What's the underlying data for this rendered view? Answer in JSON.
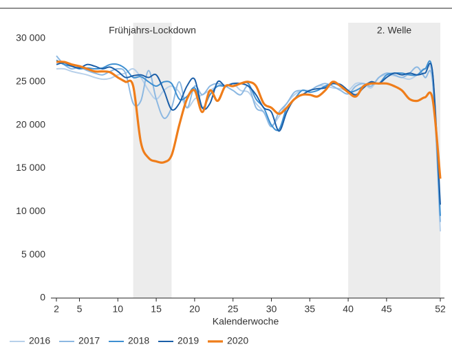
{
  "chart_data": {
    "type": "line",
    "x_label": "Kalenderwoche",
    "x": [
      2,
      3,
      4,
      5,
      6,
      7,
      8,
      9,
      10,
      11,
      12,
      13,
      14,
      15,
      16,
      17,
      18,
      19,
      20,
      21,
      22,
      23,
      24,
      25,
      26,
      27,
      28,
      29,
      30,
      31,
      32,
      33,
      34,
      35,
      36,
      37,
      38,
      39,
      40,
      41,
      42,
      43,
      44,
      45,
      46,
      47,
      48,
      49,
      50,
      51,
      52
    ],
    "xlim": [
      2,
      52
    ],
    "xticks": [
      2,
      5,
      10,
      15,
      20,
      25,
      30,
      35,
      40,
      45,
      52
    ],
    "ylim": [
      0,
      30000
    ],
    "yticks": [
      0,
      {
        "value": 5000,
        "label": "5 000"
      },
      {
        "value": 10000,
        "label": "10 000"
      },
      {
        "value": 15000,
        "label": "15 000"
      },
      {
        "value": 20000,
        "label": "20 000"
      },
      {
        "value": 25000,
        "label": "25 000"
      },
      {
        "value": 30000,
        "label": "30 000"
      }
    ],
    "grid": false,
    "legend": "bottom-left",
    "spans": [
      {
        "label": "Frühjahrs-Lockdown",
        "start": 12,
        "end": 17,
        "color": "#ececec"
      },
      {
        "label": "2. Welle",
        "start": 40,
        "end": 52,
        "color": "#ececec"
      }
    ],
    "series": [
      {
        "name": "2016",
        "color": "#b7d0ea",
        "values": [
          26500,
          26500,
          26200,
          26000,
          25800,
          25500,
          25300,
          25400,
          25800,
          26000,
          26500,
          25500,
          24000,
          23000,
          24000,
          24500,
          23800,
          22000,
          23000,
          23500,
          24000,
          24500,
          24500,
          24800,
          24000,
          23800,
          22500,
          21500,
          20000,
          21000,
          22500,
          23500,
          24000,
          24000,
          24500,
          24500,
          24300,
          24200,
          24000,
          24800,
          24800,
          24300,
          25500,
          25800,
          25700,
          25500,
          25300,
          25800,
          26500,
          25000,
          7700
        ]
      },
      {
        "name": "2017",
        "color": "#8cb8e2",
        "values": [
          28000,
          27000,
          26500,
          26700,
          26300,
          26000,
          25800,
          26200,
          26500,
          26000,
          22500,
          22800,
          26300,
          23000,
          20800,
          22000,
          25000,
          22000,
          24500,
          23500,
          24500,
          24800,
          24500,
          24000,
          23500,
          24500,
          22000,
          21500,
          19800,
          21500,
          22500,
          23800,
          24000,
          24000,
          24500,
          24800,
          24500,
          24000,
          23600,
          24500,
          24800,
          24500,
          25500,
          26000,
          25800,
          25500,
          26000,
          26700,
          25500,
          25000,
          8800
        ]
      },
      {
        "name": "2018",
        "color": "#3d8fd1",
        "values": [
          27500,
          27000,
          26800,
          26500,
          26600,
          26500,
          26600,
          27000,
          27000,
          26500,
          25500,
          25600,
          25000,
          24500,
          25000,
          24800,
          23000,
          23300,
          24300,
          22000,
          23500,
          24500,
          24500,
          24800,
          24800,
          24800,
          23000,
          22000,
          20000,
          19500,
          22000,
          23000,
          24000,
          23800,
          24000,
          24500,
          24800,
          24500,
          23800,
          24000,
          24500,
          25000,
          24800,
          25800,
          26000,
          26000,
          25800,
          25800,
          26500,
          26000,
          9500
        ]
      },
      {
        "name": "2019",
        "color": "#1a5ea8",
        "values": [
          27000,
          27200,
          26800,
          26600,
          27000,
          26800,
          26500,
          26700,
          26200,
          25500,
          25700,
          25800,
          25500,
          25800,
          24000,
          21800,
          22500,
          24500,
          25300,
          22000,
          22500,
          25000,
          24500,
          24800,
          24800,
          24500,
          23500,
          22000,
          21500,
          19300,
          21500,
          23000,
          23500,
          24000,
          24200,
          24300,
          24800,
          24700,
          24000,
          23500,
          24300,
          25000,
          24800,
          25500,
          26000,
          25800,
          26000,
          25800,
          26000,
          26000,
          10800
        ]
      },
      {
        "name": "2020",
        "color": "#ef7d1a",
        "values": [
          27300,
          27300,
          27000,
          26800,
          26500,
          26200,
          26200,
          26100,
          25500,
          25000,
          24500,
          18000,
          16200,
          15800,
          15700,
          16500,
          20000,
          23000,
          24000,
          21500,
          24000,
          22800,
          24500,
          24500,
          24800,
          25000,
          24500,
          22500,
          22000,
          21300,
          22000,
          23000,
          23500,
          23500,
          23300,
          24000,
          25000,
          24500,
          23800,
          23300,
          24500,
          24800,
          24800,
          24800,
          24500,
          24000,
          23000,
          22800,
          23200,
          23000,
          13800
        ]
      }
    ]
  }
}
